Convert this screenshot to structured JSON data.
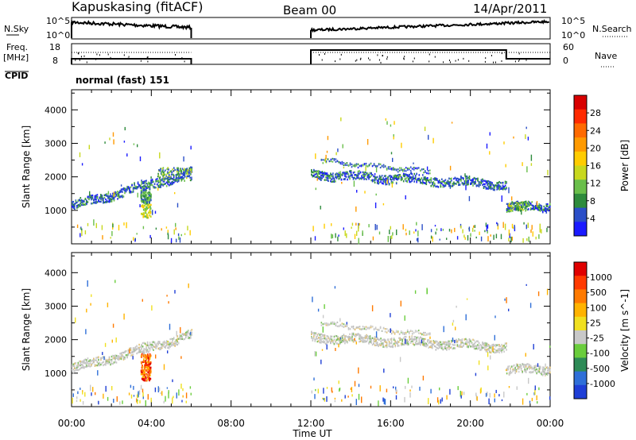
{
  "header": {
    "station": "Kapuskasing (fitACF)",
    "beam": "Beam 00",
    "date": "14/Apr/2011",
    "cpid_label": "CPID",
    "cpid_value": "normal (fast) 151"
  },
  "strip_labels": {
    "nsky": "N.Sky",
    "nsearch": "N.Search",
    "freq": "Freq.",
    "freq_unit": "[MHz]",
    "nave": "Nave",
    "noise_ticks": [
      "10^5",
      "10^0"
    ],
    "freq_ticks": [
      "18",
      "8"
    ],
    "nave_ticks": [
      "60",
      "0"
    ]
  },
  "time_axis": {
    "label": "Time UT",
    "ticks": [
      "00:00",
      "04:00",
      "08:00",
      "12:00",
      "16:00",
      "20:00",
      "00:00"
    ]
  },
  "chart_data": [
    {
      "type": "heatmap",
      "panel": "power",
      "ylabel": "Slant Range [km]",
      "xlim_hours": [
        0,
        24
      ],
      "ylim_km": [
        0,
        4600
      ],
      "yticks": [
        1000,
        2000,
        3000,
        4000
      ],
      "colorbar": {
        "label": "Power [dB]",
        "ticks": [
          "28",
          "24",
          "20",
          "16",
          "12",
          "8",
          "4"
        ],
        "colors": [
          "#1a1aff",
          "#2b4fc8",
          "#2e8b3c",
          "#6abf4b",
          "#c8d81e",
          "#ffcc00",
          "#ff9a00",
          "#ff6a00",
          "#ff2a00",
          "#d80000"
        ]
      },
      "echo_segments": [
        {
          "start_hr": 0.0,
          "end_hr": 6.0,
          "range_start_km": 1150,
          "range_end_km": 2150
        },
        {
          "start_hr": 12.0,
          "end_hr": 21.8,
          "range_start_km": 2100,
          "range_end_km": 1800
        },
        {
          "start_hr": 21.8,
          "end_hr": 24.0,
          "range_start_km": 1100,
          "range_end_km": 1150
        }
      ]
    },
    {
      "type": "heatmap",
      "panel": "velocity",
      "ylabel": "Slant Range [km]",
      "xlim_hours": [
        0,
        24
      ],
      "ylim_km": [
        0,
        4600
      ],
      "yticks": [
        1000,
        2000,
        3000,
        4000
      ],
      "colorbar": {
        "label": "Velocity [m s^-1]",
        "ticks": [
          "1000",
          "500",
          "100",
          "25",
          "-25",
          "-100",
          "-500",
          "-1000"
        ],
        "colors": [
          "#1f3fd6",
          "#2f6fd8",
          "#2e8b57",
          "#6acd3c",
          "#c8c8c8",
          "#f0e020",
          "#ffb300",
          "#ff7a00",
          "#ff3a00",
          "#e00000"
        ]
      },
      "echo_segments": [
        {
          "start_hr": 0.0,
          "end_hr": 6.0,
          "range_start_km": 1150,
          "range_end_km": 2150
        },
        {
          "start_hr": 12.0,
          "end_hr": 21.8,
          "range_start_km": 2100,
          "range_end_km": 1800
        },
        {
          "start_hr": 21.8,
          "end_hr": 24.0,
          "range_start_km": 1100,
          "range_end_km": 1150
        }
      ]
    }
  ]
}
